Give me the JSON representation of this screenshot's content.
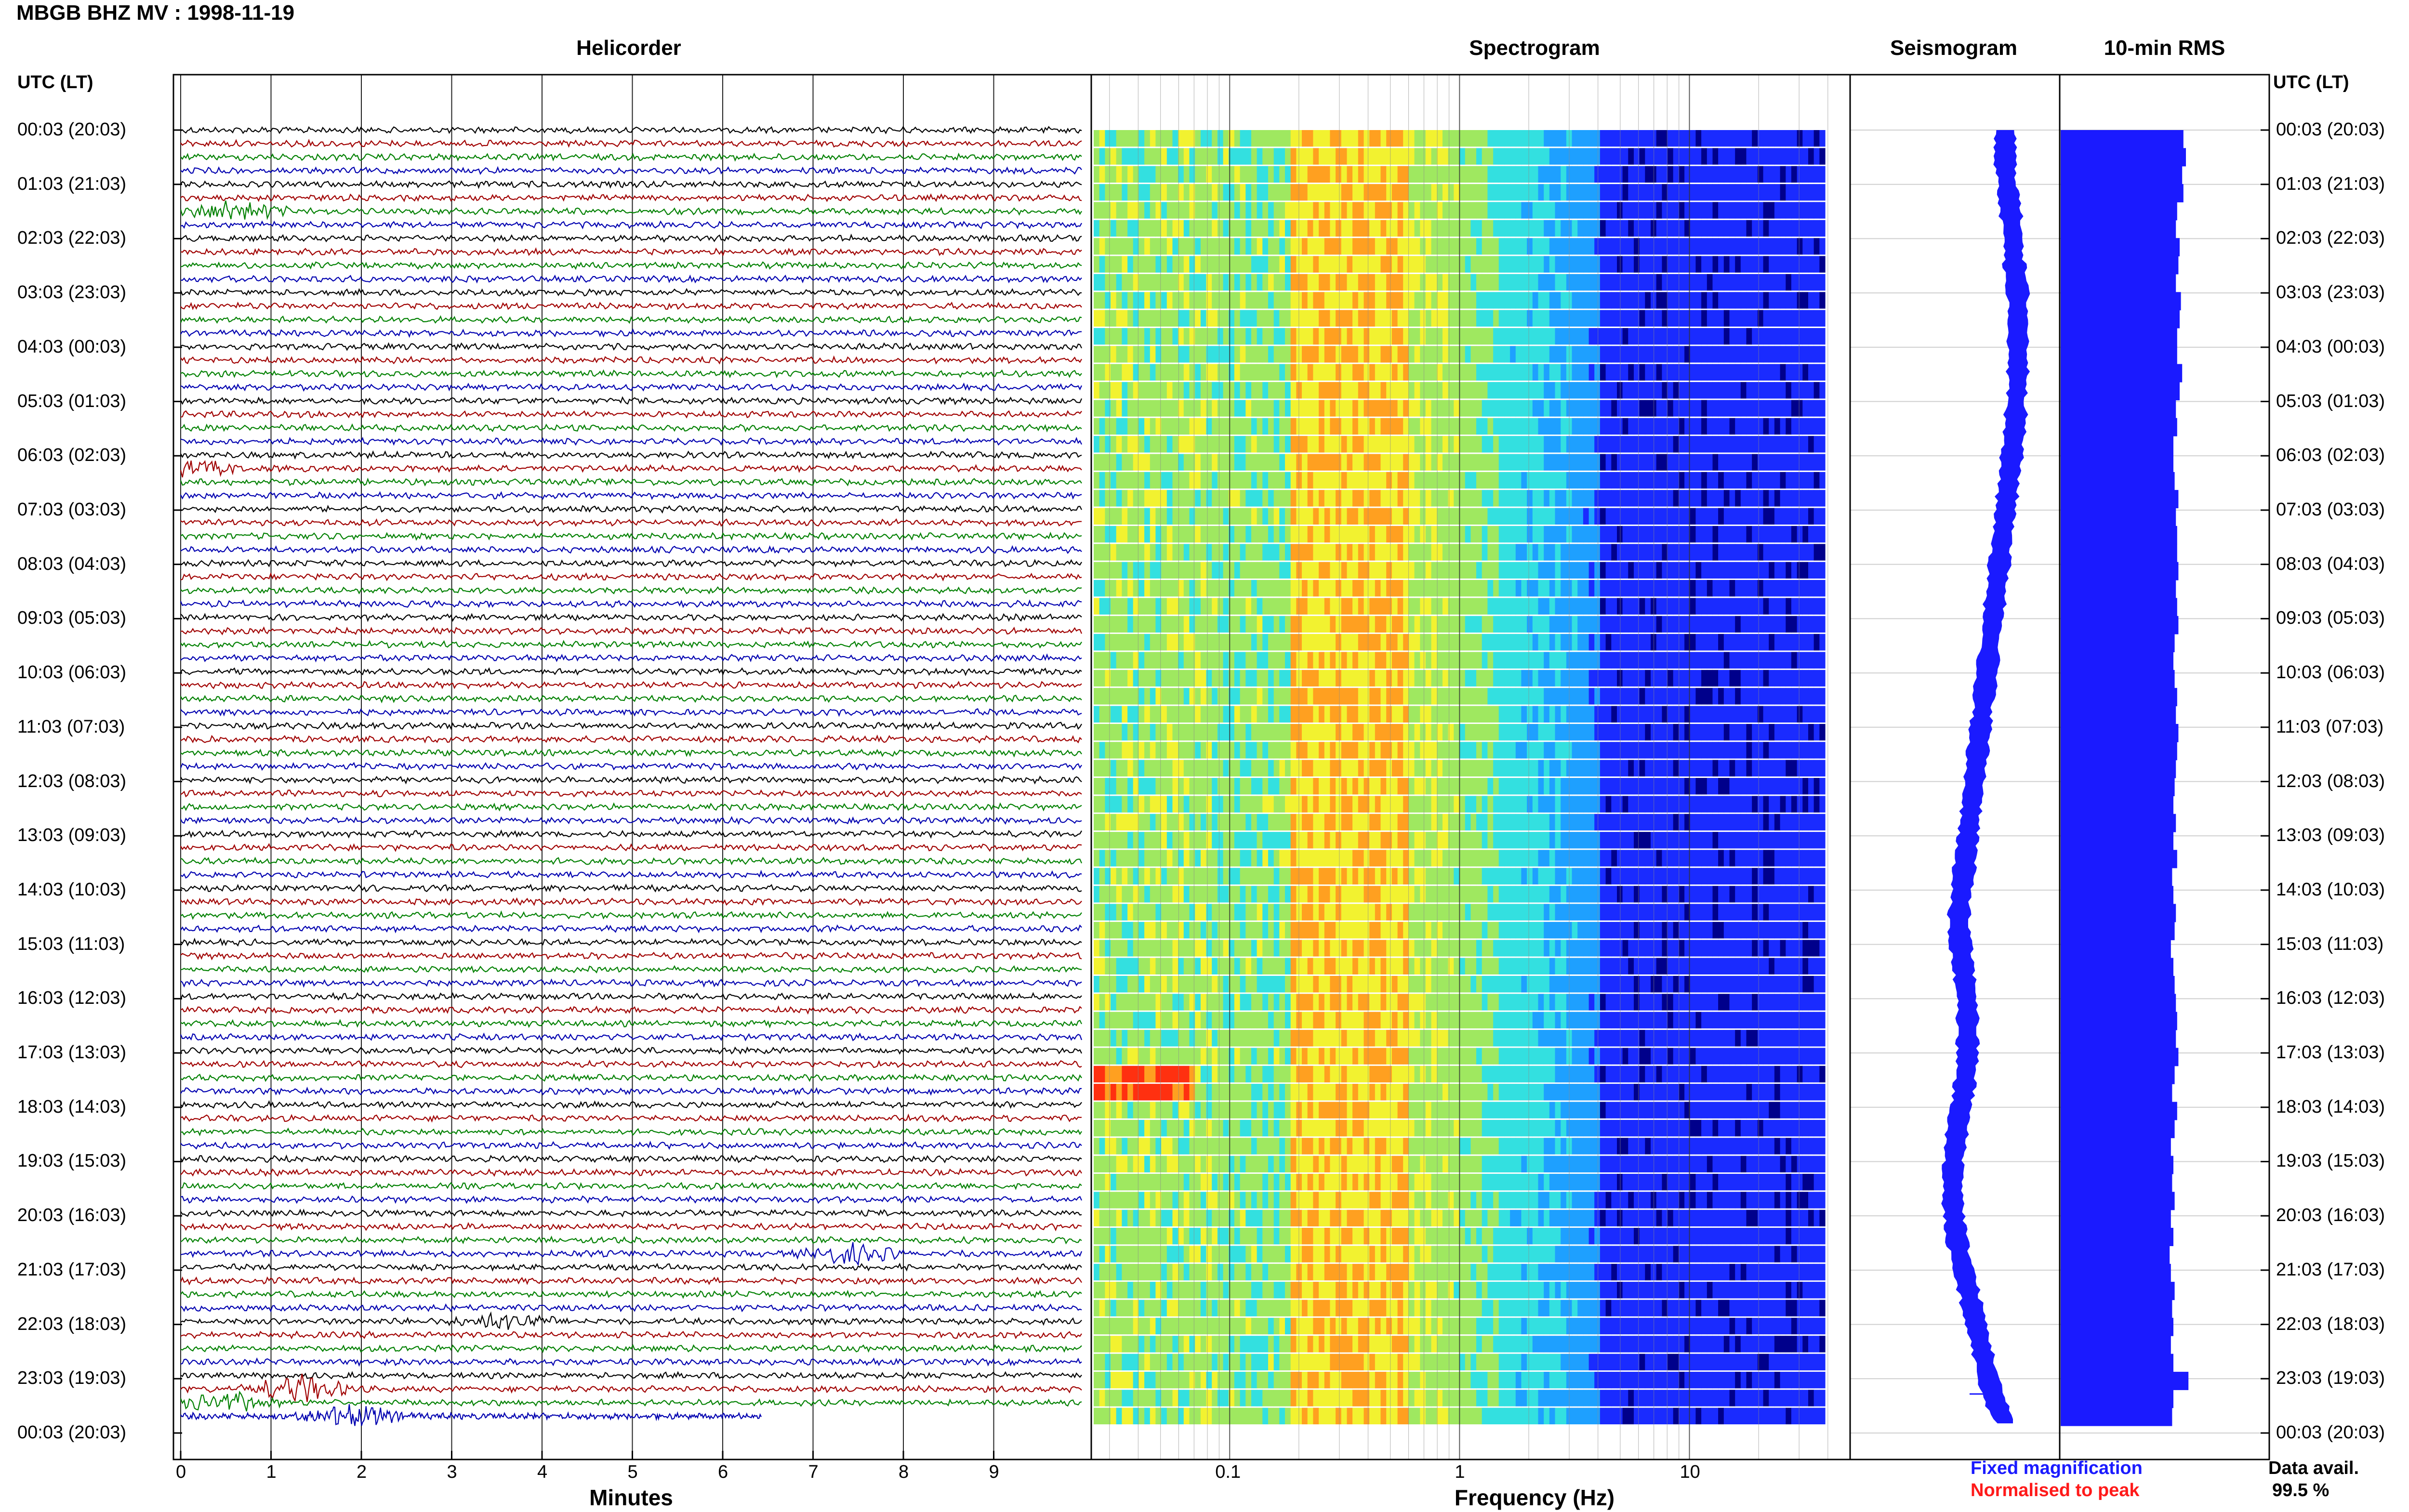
{
  "header": {
    "title": "MBGB BHZ MV : 1998-11-19"
  },
  "panels": {
    "helicorder": "Helicorder",
    "spectrogram": "Spectrogram",
    "seismogram": "Seismogram",
    "rms": "10-min RMS"
  },
  "axes": {
    "utc_header_left": "UTC (LT)",
    "utc_header_right": "UTC (LT)",
    "time_labels": [
      "00:03 (20:03)",
      "01:03 (21:03)",
      "02:03 (22:03)",
      "03:03 (23:03)",
      "04:03 (00:03)",
      "05:03 (01:03)",
      "06:03 (02:03)",
      "07:03 (03:03)",
      "08:03 (04:03)",
      "09:03 (05:03)",
      "10:03 (06:03)",
      "11:03 (07:03)",
      "12:03 (08:03)",
      "13:03 (09:03)",
      "14:03 (10:03)",
      "15:03 (11:03)",
      "16:03 (12:03)",
      "17:03 (13:03)",
      "18:03 (14:03)",
      "19:03 (15:03)",
      "20:03 (16:03)",
      "21:03 (17:03)",
      "22:03 (18:03)",
      "23:03 (19:03)",
      "00:03 (20:03)"
    ],
    "minutes_ticks": [
      "0",
      "1",
      "2",
      "3",
      "4",
      "5",
      "6",
      "7",
      "8",
      "9"
    ],
    "minutes_label": "Minutes",
    "frequency_ticks": [
      "0.1",
      "1",
      "10"
    ],
    "frequency_label": "Frequency (Hz)"
  },
  "legend": {
    "fixed": "Fixed magnification",
    "normalised": "Normalised to peak",
    "fixed_color": "#1a1aff",
    "normalised_color": "#ff1a1a"
  },
  "data_availability": {
    "label": "Data avail.",
    "value": "99.5 %"
  },
  "colors": {
    "trace_cycle": [
      "#000000",
      "#a00000",
      "#008000",
      "#0000b0"
    ],
    "seismogram_fill": "#1a1aff",
    "rms_fill": "#1a1aff"
  },
  "chart_data": [
    {
      "type": "line",
      "title": "Helicorder",
      "xlabel": "Minutes",
      "xlim": [
        0,
        10
      ],
      "rows": 96,
      "row_duration_min": 15,
      "events": [
        {
          "row": 6,
          "minute": 0.6,
          "amp": 3.0
        },
        {
          "row": 25,
          "minute": 0.1,
          "amp": 2.5
        },
        {
          "row": 83,
          "minute": 7.4,
          "amp": 2.8
        },
        {
          "row": 88,
          "minute": 3.6,
          "amp": 2.2
        },
        {
          "row": 93,
          "minute": 1.3,
          "amp": 4.0
        },
        {
          "row": 94,
          "minute": 0.5,
          "amp": 3.0
        },
        {
          "row": 95,
          "minute": 1.9,
          "amp": 3.0
        }
      ]
    },
    {
      "type": "heatmap",
      "title": "Spectrogram",
      "xlabel": "Frequency (Hz)",
      "xscale": "log",
      "xlim": [
        0.025,
        50
      ],
      "rows": 72,
      "colormap": [
        "#00008b",
        "#1a2bff",
        "#1ea0ff",
        "#33e0e0",
        "#9fe860",
        "#f2f230",
        "#ffa020",
        "#ff3010"
      ]
    },
    {
      "type": "area",
      "title": "Seismogram",
      "rows": 72,
      "values": [
        0.74,
        0.74,
        0.74,
        0.75,
        0.76,
        0.77,
        0.78,
        0.78,
        0.79,
        0.8,
        0.8,
        0.8,
        0.8,
        0.8,
        0.8,
        0.79,
        0.79,
        0.78,
        0.77,
        0.76,
        0.75,
        0.74,
        0.73,
        0.72,
        0.71,
        0.7,
        0.69,
        0.68,
        0.67,
        0.66,
        0.65,
        0.64,
        0.63,
        0.62,
        0.61,
        0.6,
        0.59,
        0.58,
        0.57,
        0.56,
        0.55,
        0.54,
        0.53,
        0.52,
        0.52,
        0.53,
        0.54,
        0.55,
        0.56,
        0.56,
        0.56,
        0.56,
        0.55,
        0.54,
        0.52,
        0.51,
        0.5,
        0.49,
        0.49,
        0.49,
        0.5,
        0.51,
        0.53,
        0.55,
        0.57,
        0.59,
        0.61,
        0.63,
        0.65,
        0.67,
        0.7,
        0.74
      ]
    },
    {
      "type": "bar",
      "title": "10-min RMS",
      "rows": 72,
      "values": [
        0.98,
        1.0,
        0.97,
        0.98,
        0.93,
        0.92,
        0.95,
        0.94,
        0.92,
        0.96,
        0.95,
        0.93,
        0.93,
        0.97,
        0.95,
        0.92,
        0.93,
        0.9,
        0.9,
        0.91,
        0.94,
        0.92,
        0.93,
        0.93,
        0.94,
        0.92,
        0.93,
        0.94,
        0.91,
        0.9,
        0.91,
        0.93,
        0.92,
        0.94,
        0.93,
        0.92,
        0.91,
        0.9,
        0.92,
        0.9,
        0.93,
        0.89,
        0.9,
        0.92,
        0.91,
        0.88,
        0.9,
        0.91,
        0.92,
        0.93,
        0.92,
        0.94,
        0.91,
        0.89,
        0.93,
        0.91,
        0.88,
        0.9,
        0.89,
        0.91,
        0.88,
        0.9,
        0.87,
        0.88,
        0.91,
        0.89,
        0.9,
        0.88,
        0.9,
        1.02,
        0.9,
        0.89
      ]
    }
  ]
}
